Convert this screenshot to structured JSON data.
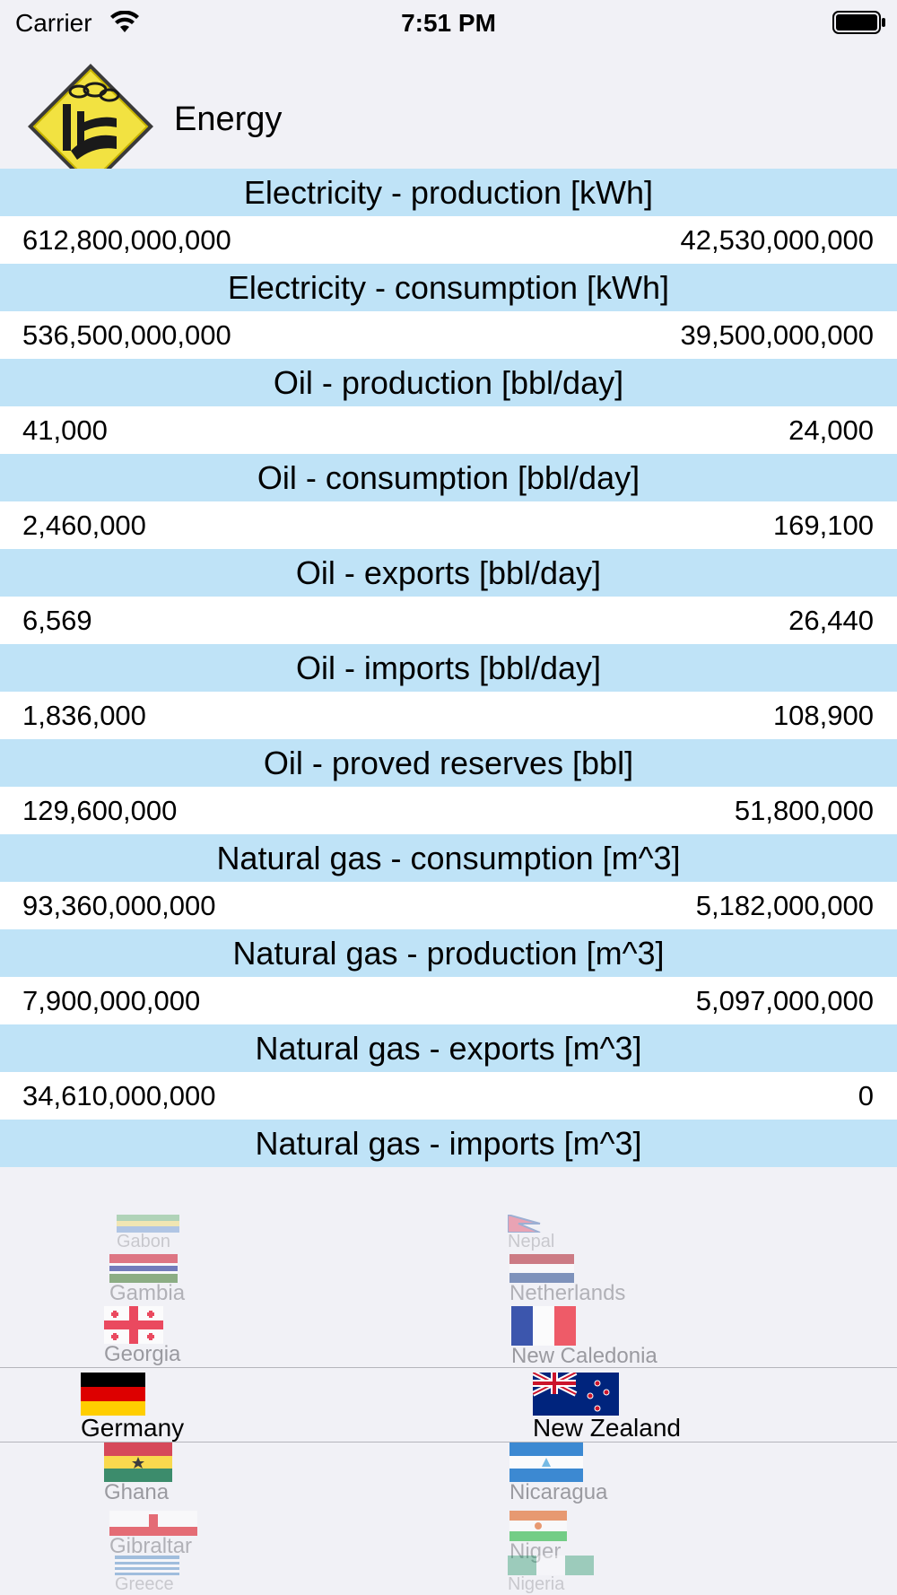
{
  "status_bar": {
    "carrier": "Carrier",
    "time": "7:51 PM",
    "icons": [
      "wifi-icon",
      "battery-icon"
    ]
  },
  "header": {
    "title": "Energy",
    "logo_icon": "factory-warning-sign-icon"
  },
  "sections": [
    {
      "title": "Electricity - production [kWh]",
      "left": "612,800,000,000",
      "right": "42,530,000,000"
    },
    {
      "title": "Electricity - consumption [kWh]",
      "left": "536,500,000,000",
      "right": "39,500,000,000"
    },
    {
      "title": "Oil - production [bbl/day]",
      "left": "41,000",
      "right": "24,000"
    },
    {
      "title": "Oil - consumption [bbl/day]",
      "left": "2,460,000",
      "right": "169,100"
    },
    {
      "title": "Oil - exports [bbl/day]",
      "left": "6,569",
      "right": "26,440"
    },
    {
      "title": "Oil - imports [bbl/day]",
      "left": "1,836,000",
      "right": "108,900"
    },
    {
      "title": "Oil - proved reserves [bbl]",
      "left": "129,600,000",
      "right": "51,800,000"
    },
    {
      "title": "Natural gas - consumption [m^3]",
      "left": "93,360,000,000",
      "right": "5,182,000,000"
    },
    {
      "title": "Natural gas - production [m^3]",
      "left": "7,900,000,000",
      "right": "5,097,000,000"
    },
    {
      "title": "Natural gas - exports [m^3]",
      "left": "34,610,000,000",
      "right": "0"
    },
    {
      "title": "Natural gas - imports [m^3]"
    }
  ],
  "picker": {
    "left_column": [
      "Gabon",
      "Gambia",
      "Georgia",
      "Germany",
      "Ghana",
      "Gibraltar",
      "Greece"
    ],
    "right_column": [
      "Nepal",
      "Netherlands",
      "New Caledonia",
      "New Zealand",
      "Nicaragua",
      "Niger",
      "Nigeria"
    ],
    "selected_left": "Germany",
    "selected_right": "New Zealand"
  }
}
